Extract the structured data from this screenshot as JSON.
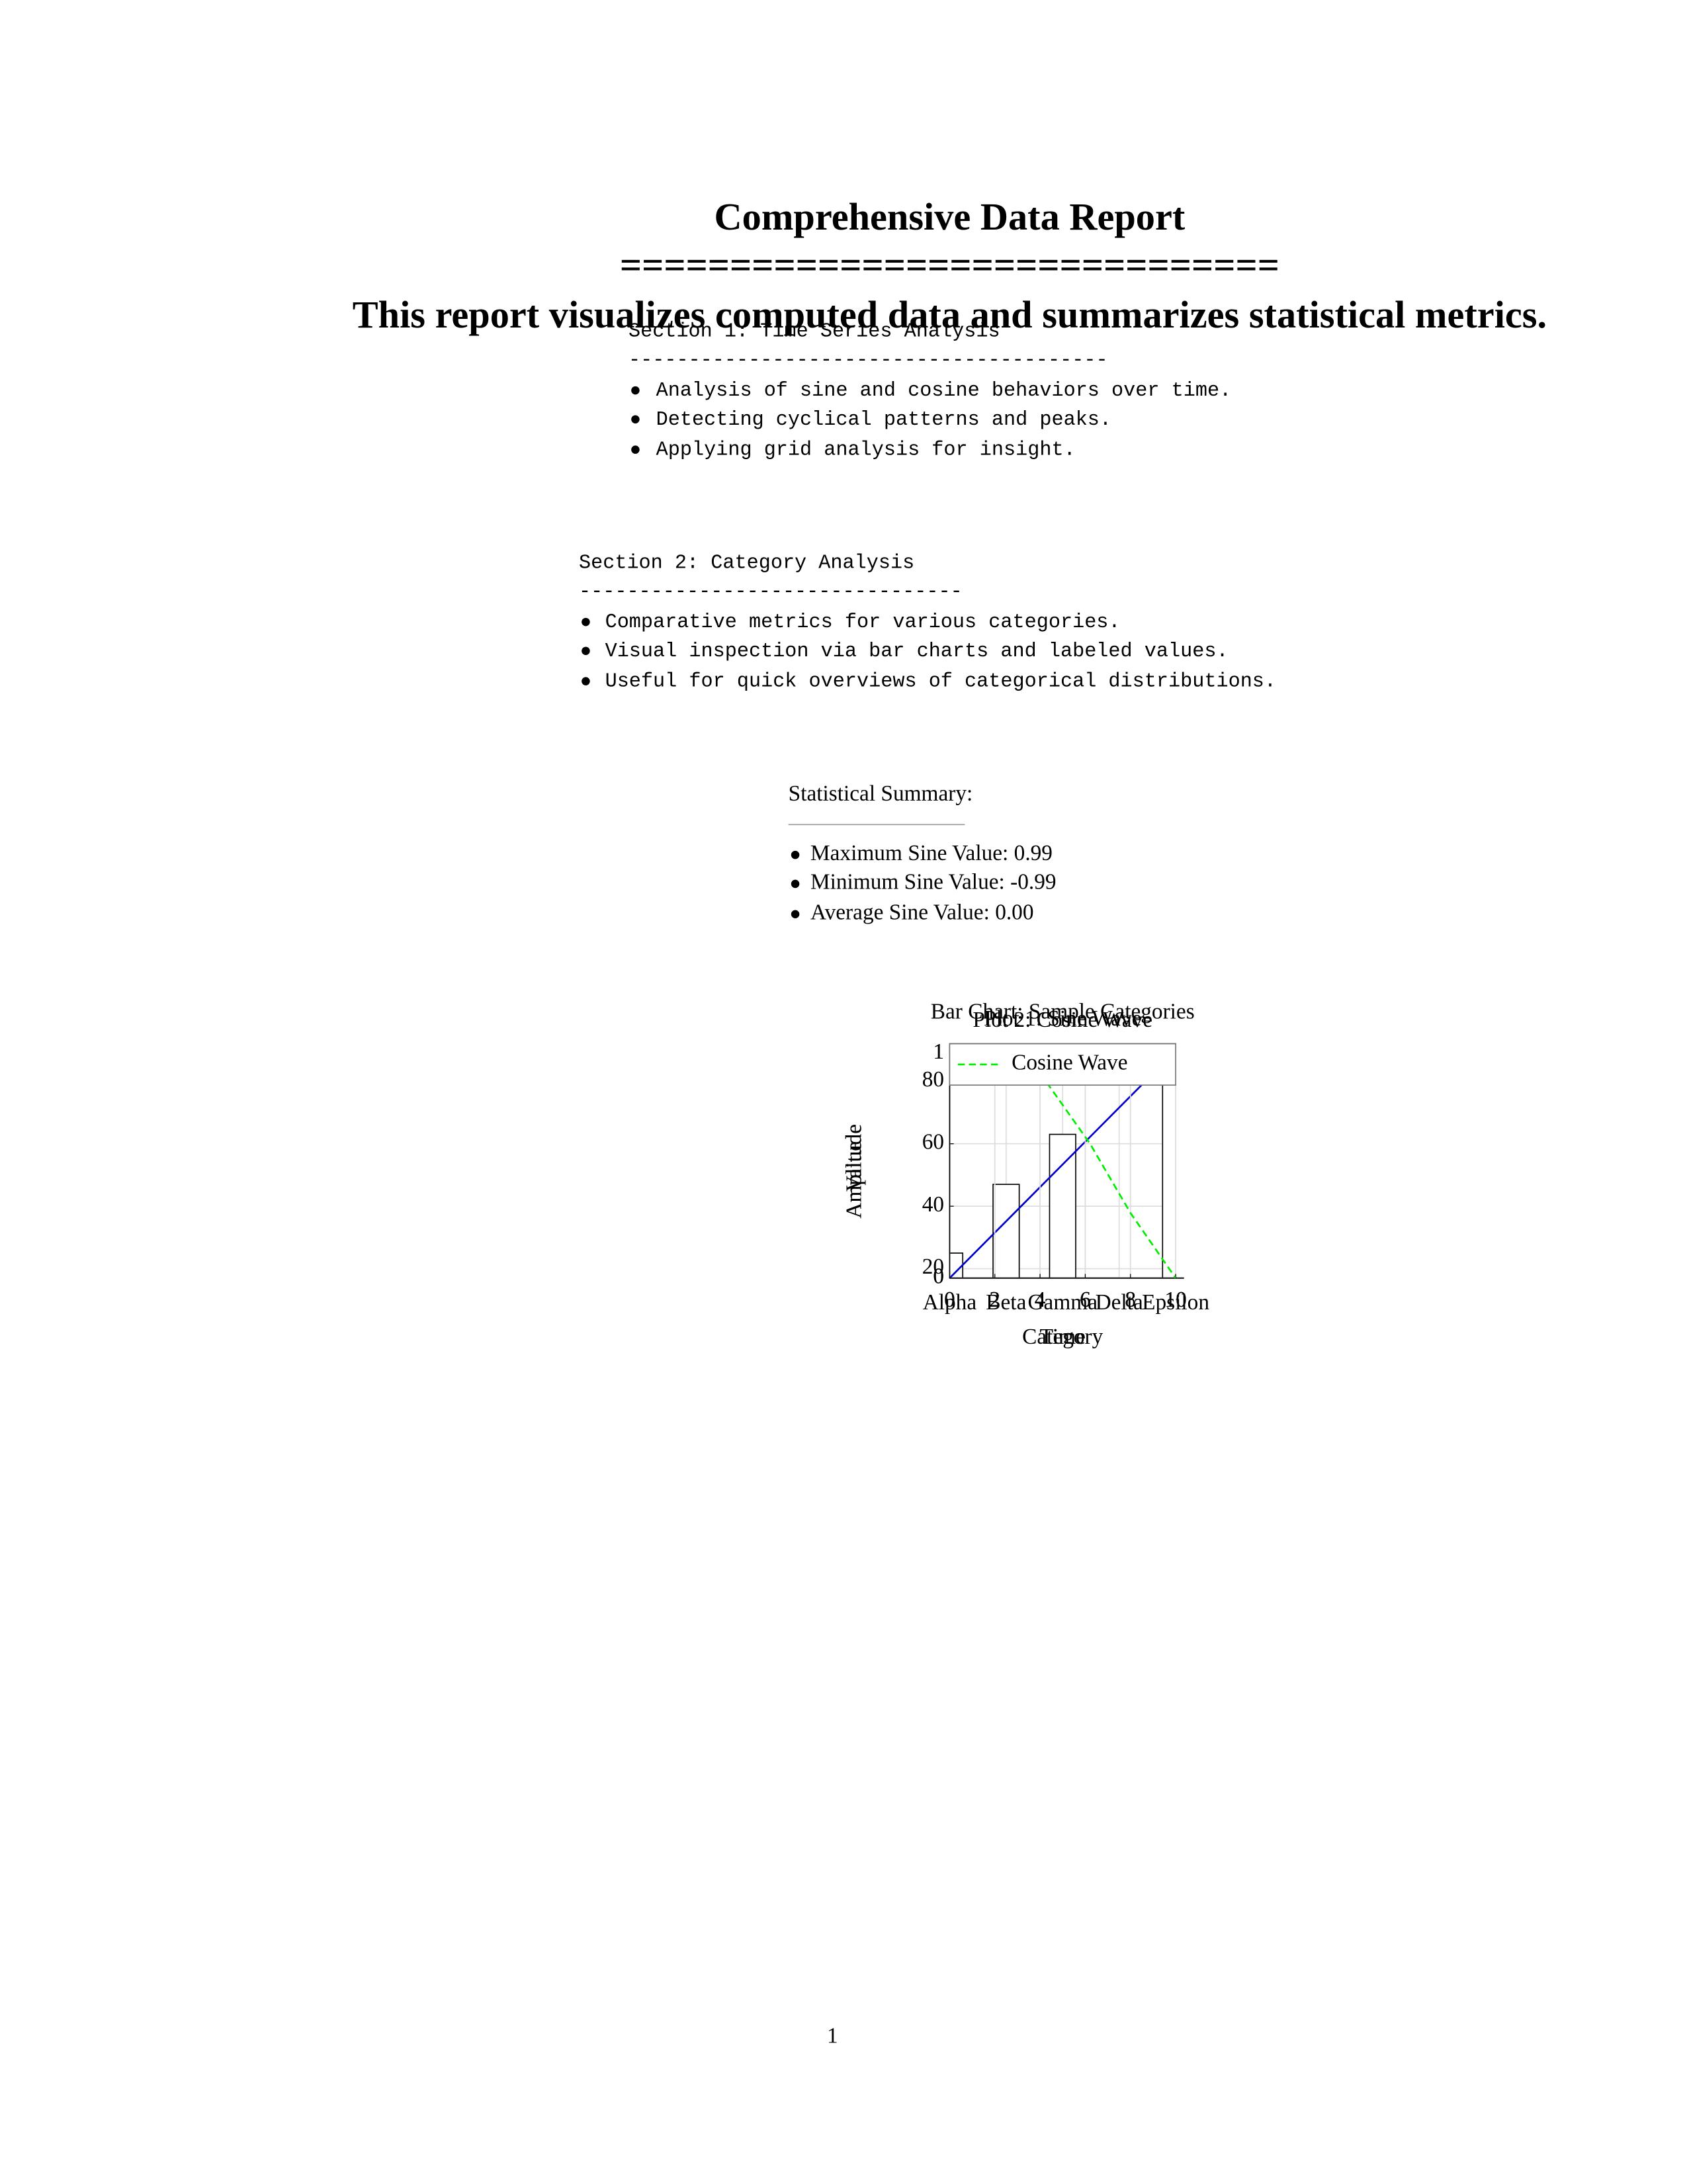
{
  "document": {
    "title": "Comprehensive Data Report",
    "title_rule": "==============================",
    "subtitle": "This report visualizes computed data and summarizes statistical metrics."
  },
  "section1": {
    "heading": "Section 1:  Time Series Analysis",
    "rule": "----------------------------------------",
    "bullets": [
      "Analysis of sine and cosine behaviors over time.",
      "Detecting cyclical patterns and peaks.",
      "Applying grid analysis for insight."
    ]
  },
  "section2": {
    "heading": "Section 2:  Category Analysis",
    "rule": "--------------------------------",
    "bullets": [
      "Comparative metrics for various categories.",
      "Visual inspection via bar charts and labeled values.",
      "Useful for quick overviews of categorical distributions."
    ]
  },
  "summary": {
    "heading": "Statistical Summary:",
    "items": [
      "Maximum Sine Value: 0.99",
      "Minimum Sine Value: -0.99",
      "Average Sine Value: 0.00"
    ]
  },
  "page_number": "1",
  "chart_data": [
    {
      "type": "bar",
      "title": "Bar Chart: Sample Categories",
      "xlabel": "Category",
      "ylabel": "Value",
      "categories": [
        "Alpha",
        "Beta",
        "Gamma",
        "Delta",
        "Epsilon"
      ],
      "values": [
        25,
        47,
        63,
        17,
        89
      ],
      "color": "#ffffff",
      "ylim": [
        17,
        92
      ],
      "yticks": [
        20,
        40,
        60,
        80
      ],
      "grid": true
    },
    {
      "type": "line",
      "title": "Plot 1: Sine Wave",
      "xlabel": "Time",
      "ylabel": "Amplitude",
      "x": [
        0,
        8.6
      ],
      "series": [
        {
          "color": "#0000cc",
          "style": "solid",
          "values": [
            0,
            0.87
          ]
        }
      ],
      "xlim": [
        0,
        10
      ],
      "ylim": [
        0,
        1
      ],
      "xticks": [
        0,
        2,
        4,
        6,
        8,
        10
      ],
      "yticks": [
        0,
        1
      ],
      "grid": true
    },
    {
      "type": "line",
      "title": "Plot 2: Cosine Wave",
      "xlabel": "Time",
      "ylabel": "Amplitude",
      "x": [
        4.3,
        6.2,
        8,
        10
      ],
      "series": [
        {
          "name": "Cosine Wave",
          "color": "#00ee00",
          "style": "dashed",
          "values": [
            0.87,
            0.6,
            0.29,
            0
          ]
        }
      ],
      "xlim": [
        0,
        10
      ],
      "ylim": [
        0,
        1
      ],
      "xticks": [
        0,
        2,
        4,
        6,
        8,
        10
      ],
      "yticks": [
        0,
        1
      ],
      "grid": true,
      "legend": "top"
    }
  ]
}
